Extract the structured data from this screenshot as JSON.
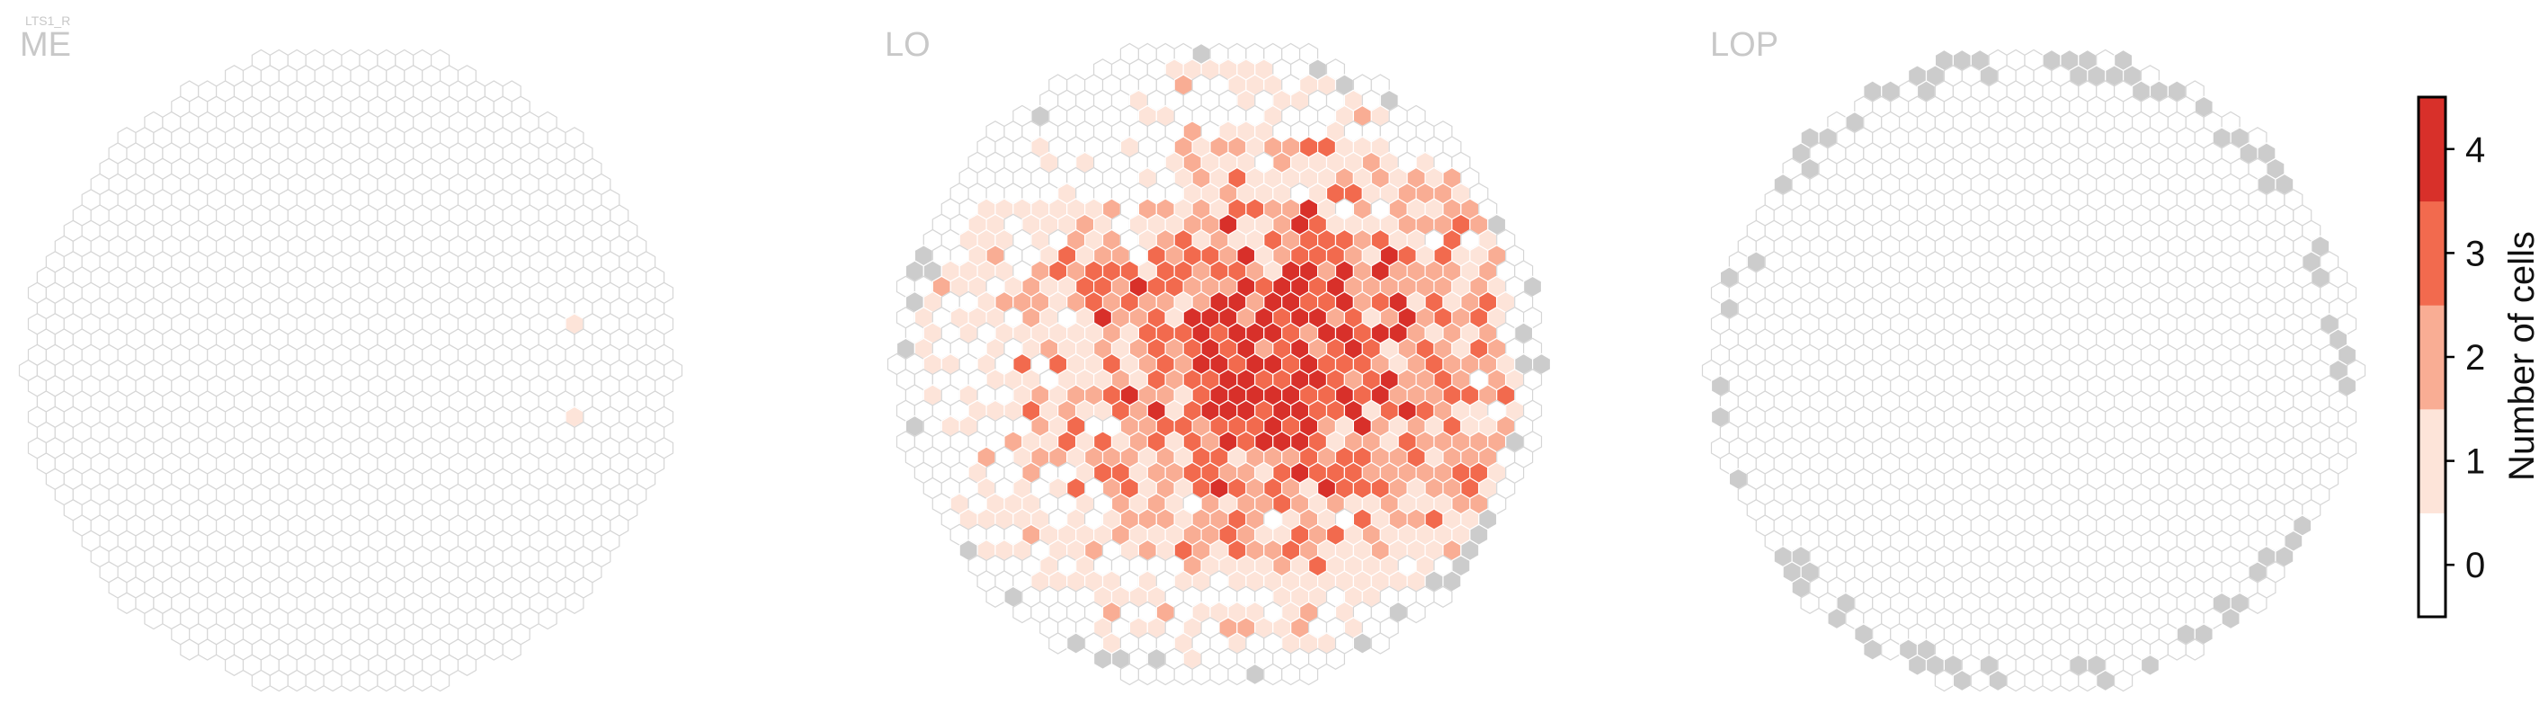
{
  "chart_data": {
    "type": "heatmap",
    "figure_tag": "LTS1_R",
    "panels": [
      {
        "name": "ME",
        "counts": {
          "1": 2,
          "2": 0,
          "3": 0,
          "4": 0
        }
      },
      {
        "name": "LO",
        "counts": {
          "1": 260,
          "2": 110,
          "3": 75,
          "4": 28
        }
      },
      {
        "name": "LOP",
        "counts": {
          "1": 0,
          "2": 0,
          "3": 0,
          "4": 0
        }
      }
    ],
    "colorbar": {
      "label": "Number of cells",
      "ticks": [
        "0",
        "1",
        "2",
        "3",
        "4"
      ],
      "range": [
        -0.5,
        4.5
      ],
      "colors": [
        "#ffffff",
        "#fde4d9",
        "#f9ad94",
        "#f26a4e",
        "#d8302a"
      ]
    },
    "styles": {
      "empty_hex_stroke": "#d6d6d6",
      "missing_hex_fill": "#cccccc",
      "grid": false
    }
  }
}
